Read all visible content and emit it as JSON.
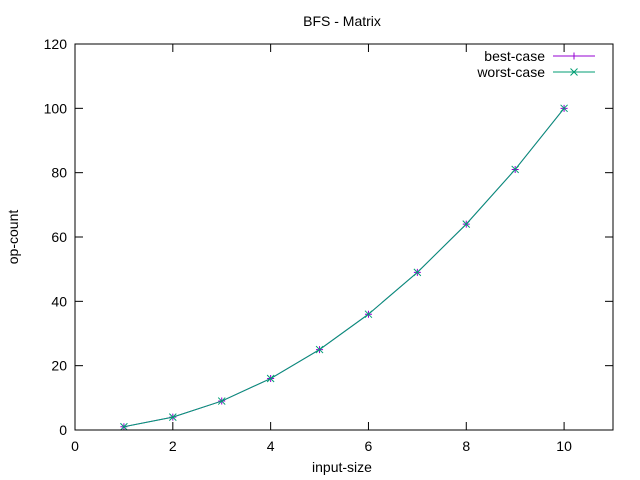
{
  "chart_data": {
    "type": "line",
    "title": "BFS - Matrix",
    "xlabel": "input-size",
    "ylabel": "op-count",
    "xlim": [
      0,
      11
    ],
    "ylim": [
      0,
      120
    ],
    "xticks": [
      0,
      2,
      4,
      6,
      8,
      10
    ],
    "yticks": [
      0,
      20,
      40,
      60,
      80,
      100,
      120
    ],
    "xtick_labels": [
      "0",
      "2",
      "4",
      "6",
      "8",
      "10"
    ],
    "ytick_labels": [
      "0",
      "20",
      "40",
      "60",
      "80",
      "100",
      "120"
    ],
    "legend_position": "top-right",
    "x": [
      1,
      2,
      3,
      4,
      5,
      6,
      7,
      8,
      9,
      10
    ],
    "series": [
      {
        "name": "best-case",
        "color": "#9400d3",
        "marker": "plus",
        "values": [
          1,
          4,
          9,
          16,
          25,
          36,
          49,
          64,
          81,
          100
        ]
      },
      {
        "name": "worst-case",
        "color": "#009e73",
        "marker": "cross",
        "values": [
          1,
          4,
          9,
          16,
          25,
          36,
          49,
          64,
          81,
          100
        ]
      }
    ]
  }
}
